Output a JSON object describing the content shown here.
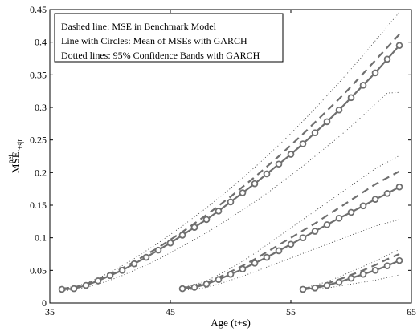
{
  "chart_data": {
    "type": "line",
    "title": "",
    "xlabel": "Age (t+s)",
    "ylabel": {
      "base": "MSE",
      "sup": "net",
      "sub": "t+s|t"
    },
    "xlim": [
      35,
      65
    ],
    "ylim": [
      0,
      0.45
    ],
    "xticks": [
      "35",
      "45",
      "55",
      "65"
    ],
    "yticks": [
      "0",
      "0.05",
      "0.1",
      "0.15",
      "0.2",
      "0.25",
      "0.3",
      "0.35",
      "0.4",
      "0.45"
    ],
    "xtick_values": [
      35,
      45,
      55,
      65
    ],
    "ytick_values": [
      0,
      0.05,
      0.1,
      0.15,
      0.2,
      0.25,
      0.3,
      0.35,
      0.4,
      0.45
    ],
    "grid": false,
    "legend_placement": "top-left",
    "legend": [
      "Dashed line: MSE in Benchmark Model",
      "Line with Circles: Mean of MSEs with GARCH",
      "Dotted lines: 95% Confidence Bands with GARCH"
    ],
    "groups": [
      {
        "x": [
          36,
          37,
          38,
          39,
          40,
          41,
          42,
          43,
          44,
          45,
          46,
          47,
          48,
          49,
          50,
          51,
          52,
          53,
          54,
          55,
          56,
          57,
          58,
          59,
          60,
          61,
          62,
          63,
          64
        ],
        "mean": [
          0.021,
          0.022,
          0.027,
          0.034,
          0.042,
          0.05,
          0.06,
          0.07,
          0.081,
          0.092,
          0.104,
          0.116,
          0.128,
          0.141,
          0.155,
          0.169,
          0.183,
          0.198,
          0.213,
          0.228,
          0.244,
          0.261,
          0.278,
          0.296,
          0.315,
          0.334,
          0.353,
          0.374,
          0.395
        ],
        "benchmark": [
          0.022,
          0.024,
          0.029,
          0.036,
          0.044,
          0.053,
          0.063,
          0.074,
          0.085,
          0.097,
          0.109,
          0.122,
          0.135,
          0.149,
          0.163,
          0.178,
          0.193,
          0.209,
          0.225,
          0.242,
          0.259,
          0.277,
          0.295,
          0.313,
          0.332,
          0.352,
          0.372,
          0.392,
          0.412
        ],
        "upper": [
          0.023,
          0.025,
          0.03,
          0.038,
          0.047,
          0.057,
          0.068,
          0.08,
          0.092,
          0.105,
          0.118,
          0.132,
          0.146,
          0.161,
          0.176,
          0.192,
          0.208,
          0.225,
          0.242,
          0.26,
          0.279,
          0.298,
          0.318,
          0.338,
          0.359,
          0.38,
          0.402,
          0.424,
          0.446
        ],
        "lower": [
          0.019,
          0.02,
          0.024,
          0.029,
          0.035,
          0.042,
          0.05,
          0.058,
          0.067,
          0.077,
          0.087,
          0.097,
          0.108,
          0.119,
          0.131,
          0.143,
          0.155,
          0.168,
          0.182,
          0.196,
          0.21,
          0.225,
          0.24,
          0.255,
          0.271,
          0.288,
          0.305,
          0.322,
          0.323
        ]
      },
      {
        "x": [
          46,
          47,
          48,
          49,
          50,
          51,
          52,
          53,
          54,
          55,
          56,
          57,
          58,
          59,
          60,
          61,
          62,
          63,
          64
        ],
        "mean": [
          0.022,
          0.024,
          0.029,
          0.036,
          0.044,
          0.052,
          0.061,
          0.07,
          0.08,
          0.09,
          0.1,
          0.11,
          0.12,
          0.13,
          0.139,
          0.149,
          0.159,
          0.168,
          0.178
        ],
        "benchmark": [
          0.023,
          0.026,
          0.031,
          0.039,
          0.048,
          0.057,
          0.067,
          0.078,
          0.089,
          0.1,
          0.111,
          0.122,
          0.134,
          0.146,
          0.158,
          0.17,
          0.182,
          0.192,
          0.202
        ],
        "upper": [
          0.024,
          0.028,
          0.034,
          0.043,
          0.053,
          0.064,
          0.076,
          0.089,
          0.102,
          0.115,
          0.128,
          0.141,
          0.154,
          0.167,
          0.18,
          0.193,
          0.206,
          0.216,
          0.226
        ],
        "lower": [
          0.02,
          0.021,
          0.024,
          0.029,
          0.035,
          0.041,
          0.048,
          0.055,
          0.062,
          0.069,
          0.076,
          0.083,
          0.09,
          0.097,
          0.104,
          0.111,
          0.118,
          0.123,
          0.128
        ]
      },
      {
        "x": [
          56,
          57,
          58,
          59,
          60,
          61,
          62,
          63,
          64
        ],
        "mean": [
          0.021,
          0.023,
          0.027,
          0.032,
          0.038,
          0.044,
          0.05,
          0.057,
          0.065
        ],
        "benchmark": [
          0.022,
          0.025,
          0.03,
          0.036,
          0.043,
          0.05,
          0.058,
          0.067,
          0.075
        ],
        "upper": [
          0.023,
          0.027,
          0.033,
          0.04,
          0.048,
          0.056,
          0.064,
          0.073,
          0.082
        ],
        "lower": [
          0.02,
          0.021,
          0.023,
          0.026,
          0.029,
          0.032,
          0.035,
          0.039,
          0.043
        ]
      }
    ],
    "colors": {
      "mean": "#6f6f6f",
      "benchmark": "#6f6f6f",
      "band": "#444444",
      "axis": "#000000"
    }
  }
}
